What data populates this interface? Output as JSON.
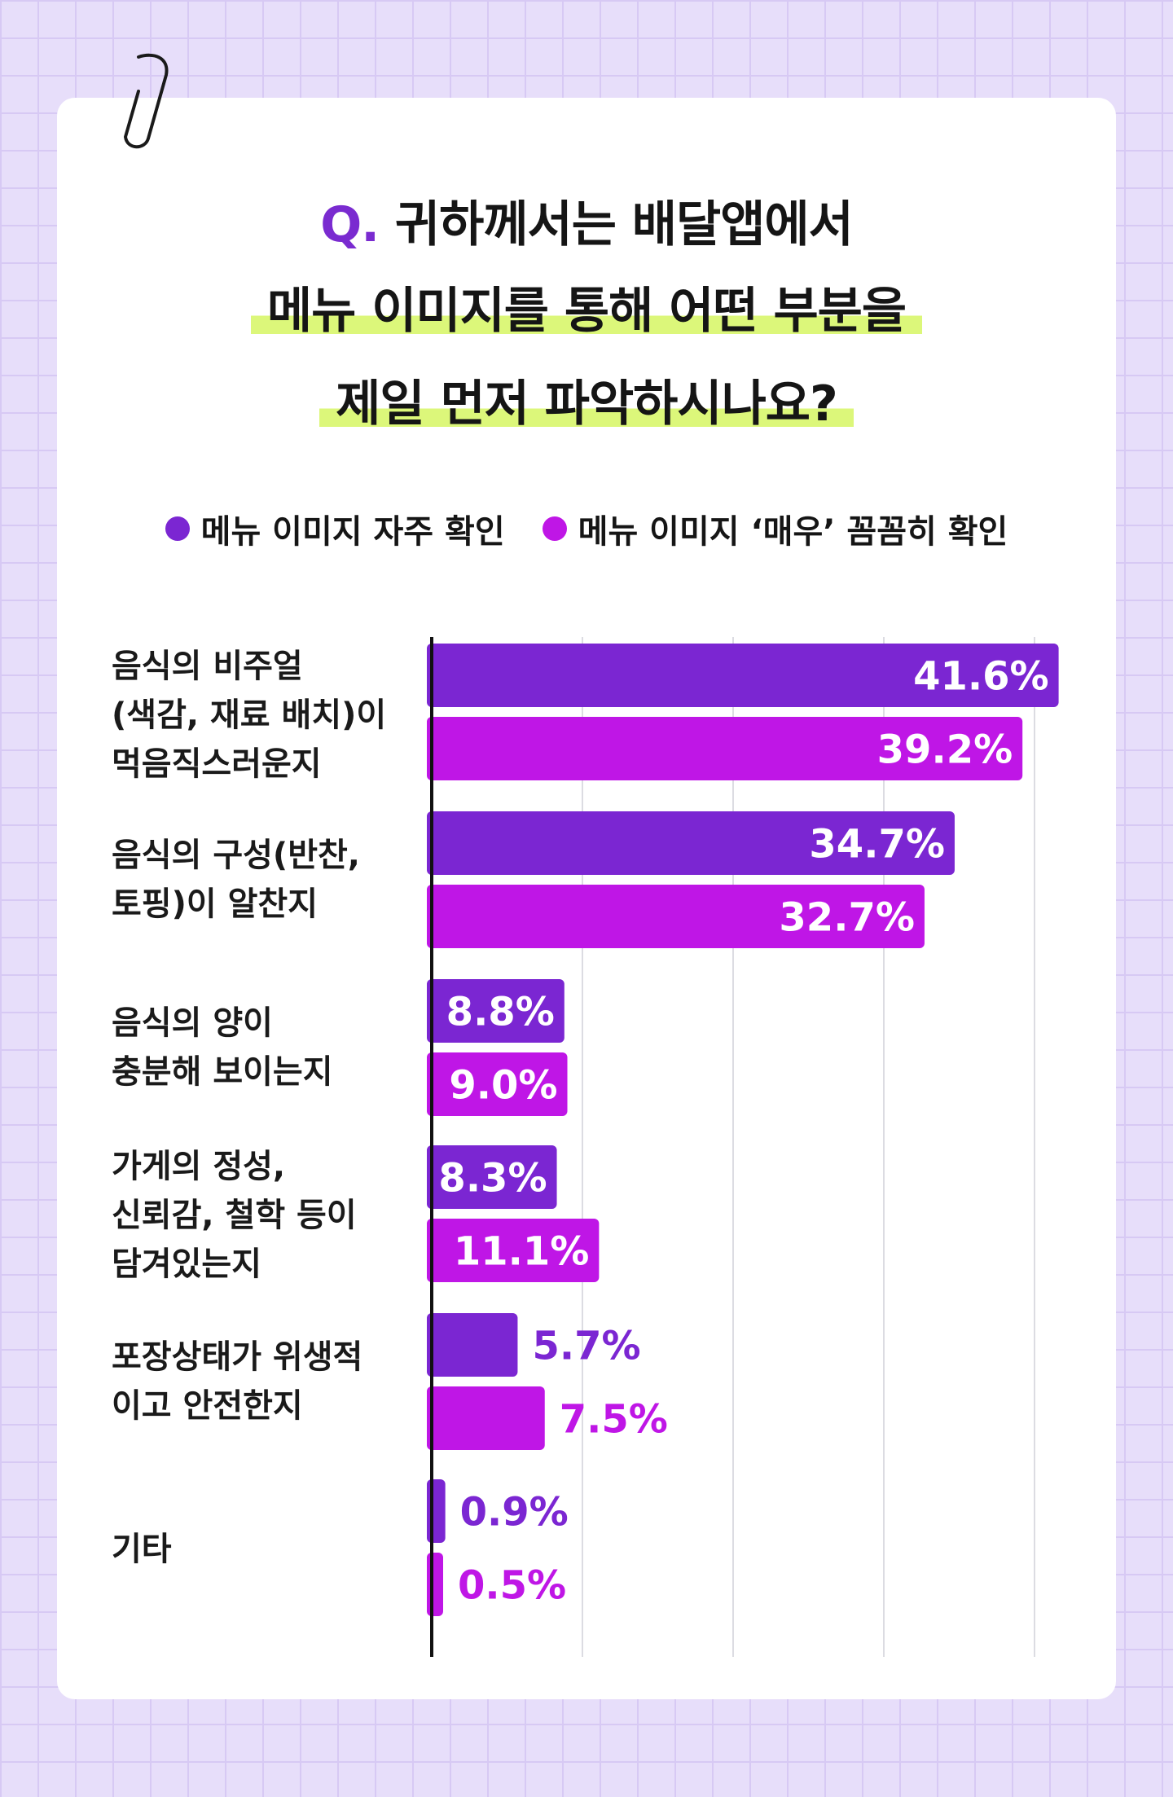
{
  "title": {
    "q_prefix": "Q.",
    "line1": "귀하께서는 배달앱에서",
    "line2": "메뉴 이미지를 통해 어떤 부분을",
    "line3": "제일 먼저 파악하시나요?"
  },
  "colors": {
    "series1": "#7b26d2",
    "series2": "#bf16e6",
    "accent_q": "#7a2bd0",
    "highlight": "#dcf77a"
  },
  "icons": {
    "clip": "paperclip-icon"
  },
  "chart_data": {
    "type": "bar",
    "orientation": "horizontal",
    "categories": [
      "음식의 비주얼\n(색감, 재료 배치)이\n먹음직스러운지",
      "음식의 구성(반찬,\n토핑)이 알찬지",
      "음식의 양이\n충분해 보이는지",
      "가게의 정성,\n신뢰감, 철학 등이\n담겨있는지",
      "포장상태가 위생적\n이고 안전한지",
      "기타"
    ],
    "series": [
      {
        "name": "메뉴 이미지 자주 확인",
        "values": [
          41.6,
          34.7,
          8.8,
          8.3,
          5.7,
          0.9
        ],
        "labels": [
          "41.6%",
          "34.7%",
          "8.8%",
          "8.3%",
          "5.7%",
          "0.9%"
        ]
      },
      {
        "name": "메뉴 이미지 ‘매우’ 꼼꼼히 확인",
        "values": [
          39.2,
          32.7,
          9.0,
          11.1,
          7.5,
          0.5
        ],
        "labels": [
          "39.2%",
          "32.7%",
          "9.0%",
          "11.1%",
          "7.5%",
          "0.5%"
        ]
      }
    ],
    "xlim": [
      0,
      40
    ],
    "grid": true,
    "legend": "top-center"
  }
}
